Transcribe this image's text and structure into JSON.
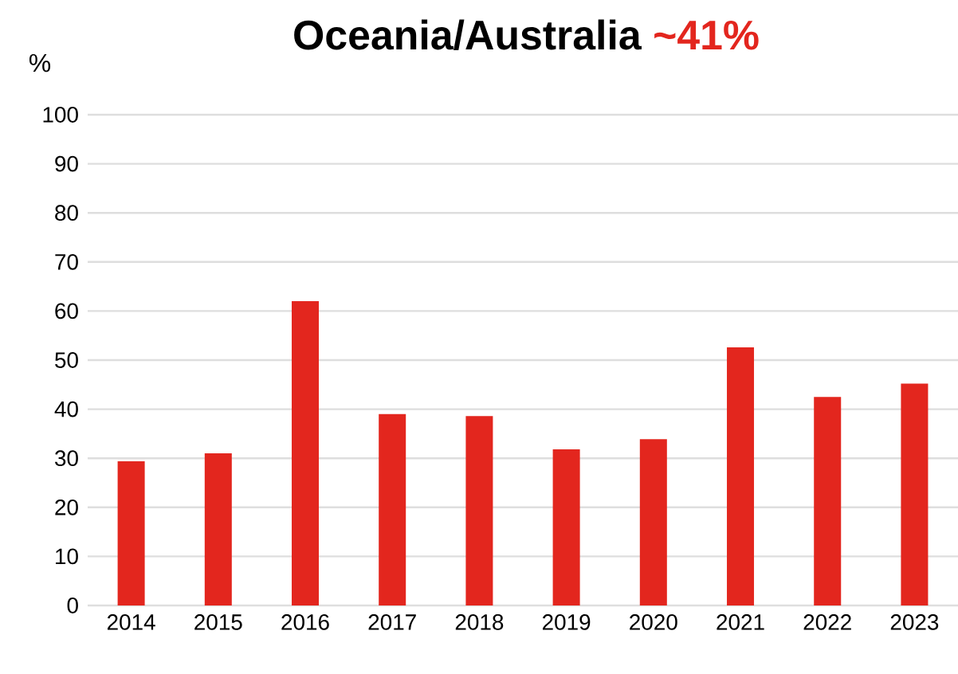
{
  "chart_data": {
    "type": "bar",
    "title": "Oceania/Australia",
    "subtitle": "~41%",
    "ylabel": "%",
    "categories": [
      "2014",
      "2015",
      "2016",
      "2017",
      "2018",
      "2019",
      "2020",
      "2021",
      "2022",
      "2023"
    ],
    "values": [
      29.4,
      31.0,
      62.0,
      39.0,
      38.6,
      31.8,
      33.9,
      52.6,
      42.5,
      45.2
    ],
    "color": "#e3261e",
    "ylim": [
      0,
      100
    ],
    "yticks": [
      0,
      10,
      20,
      30,
      40,
      50,
      60,
      70,
      80,
      90,
      100
    ],
    "grid": "y"
  }
}
